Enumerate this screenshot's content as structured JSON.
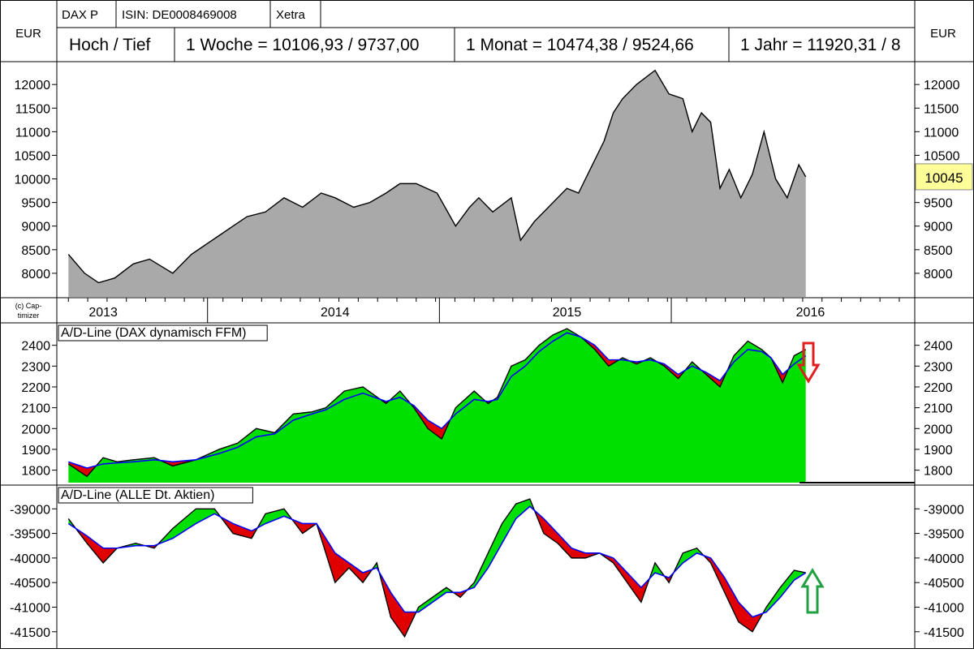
{
  "header": {
    "symbol": "DAX P",
    "isin": "ISIN: DE0008469008",
    "exchange": "Xetra",
    "hl_label": "Hoch / Tief",
    "week": "1 Woche = 10106,93 / 9737,00",
    "month": "1 Monat = 10474,38 / 9524,66",
    "year": "1 Jahr = 11920,31 / 8",
    "currency_left": "EUR",
    "currency_right": "EUR"
  },
  "copyright": [
    "(c) Cap-",
    "timizer"
  ],
  "colors": {
    "price_fill": "#a9a9a9",
    "ad_up": "#00e000",
    "ad_down": "#e00000",
    "ma_line": "#0000ff",
    "current_tag": "#ffff99",
    "arrow_down": "#e02020",
    "arrow_up": "#20a040"
  },
  "icons": {
    "panel2_signal": "down-arrow-icon",
    "panel3_signal": "up-arrow-icon"
  },
  "chart_data": [
    {
      "type": "area",
      "xlabel": "",
      "ylabel": "",
      "ylim": [
        7500,
        12450
      ],
      "yticks": [
        8000,
        8500,
        9000,
        9500,
        10000,
        10500,
        11000,
        11500,
        12000
      ],
      "current_value": "10045",
      "xticks": [
        "2013",
        "2014",
        "2015",
        "2016"
      ],
      "x": [
        2012.85,
        2012.92,
        2012.98,
        2013.05,
        2013.13,
        2013.2,
        2013.3,
        2013.38,
        2013.44,
        2013.5,
        2013.56,
        2013.62,
        2013.7,
        2013.78,
        2013.86,
        2013.94,
        2014.0,
        2014.08,
        2014.15,
        2014.22,
        2014.28,
        2014.35,
        2014.44,
        2014.52,
        2014.58,
        2014.62,
        2014.68,
        2014.76,
        2014.8,
        2014.86,
        2014.92,
        2015.0,
        2015.05,
        2015.1,
        2015.16,
        2015.2,
        2015.24,
        2015.3,
        2015.38,
        2015.44,
        2015.5,
        2015.54,
        2015.58,
        2015.62,
        2015.66,
        2015.7,
        2015.75,
        2015.8,
        2015.85,
        2015.9,
        2015.95,
        2016.0,
        2016.03
      ],
      "values": [
        8400,
        8000,
        7800,
        7900,
        8200,
        8300,
        8000,
        8400,
        8600,
        8800,
        9000,
        9200,
        9300,
        9600,
        9400,
        9700,
        9600,
        9400,
        9500,
        9700,
        9900,
        9900,
        9700,
        9000,
        9400,
        9600,
        9300,
        9600,
        8700,
        9100,
        9400,
        9800,
        9700,
        10200,
        10800,
        11400,
        11700,
        12000,
        12300,
        11800,
        11700,
        11000,
        11400,
        11200,
        9800,
        10200,
        9600,
        10100,
        11000,
        10000,
        9600,
        10300,
        10045
      ]
    },
    {
      "type": "area",
      "title": "A/D-Line (DAX dynamisch FFM)",
      "ylim": [
        1740,
        2500
      ],
      "yticks": [
        1800,
        1900,
        2000,
        2100,
        2200,
        2300,
        2400
      ],
      "x": [
        2012.85,
        2012.93,
        2013.0,
        2013.06,
        2013.13,
        2013.22,
        2013.3,
        2013.4,
        2013.5,
        2013.58,
        2013.66,
        2013.74,
        2013.82,
        2013.9,
        2013.96,
        2014.04,
        2014.12,
        2014.22,
        2014.28,
        2014.34,
        2014.4,
        2014.46,
        2014.52,
        2014.6,
        2014.66,
        2014.7,
        2014.76,
        2014.82,
        2014.88,
        2014.94,
        2015.0,
        2015.06,
        2015.12,
        2015.18,
        2015.24,
        2015.3,
        2015.36,
        2015.42,
        2015.48,
        2015.54,
        2015.6,
        2015.66,
        2015.72,
        2015.78,
        2015.84,
        2015.88,
        2015.93,
        2015.98,
        2016.03
      ],
      "values": [
        1830,
        1770,
        1860,
        1840,
        1850,
        1860,
        1820,
        1850,
        1900,
        1930,
        2000,
        1980,
        2070,
        2080,
        2100,
        2180,
        2200,
        2120,
        2180,
        2100,
        2000,
        1950,
        2100,
        2180,
        2120,
        2150,
        2300,
        2330,
        2400,
        2450,
        2480,
        2440,
        2380,
        2300,
        2340,
        2310,
        2340,
        2300,
        2240,
        2320,
        2260,
        2200,
        2350,
        2420,
        2380,
        2340,
        2220,
        2350,
        2380
      ],
      "ma": [
        1840,
        1810,
        1830,
        1835,
        1840,
        1850,
        1840,
        1850,
        1880,
        1910,
        1960,
        1975,
        2040,
        2070,
        2090,
        2140,
        2170,
        2130,
        2150,
        2110,
        2040,
        2000,
        2070,
        2140,
        2130,
        2140,
        2250,
        2300,
        2370,
        2420,
        2460,
        2440,
        2400,
        2330,
        2330,
        2320,
        2330,
        2310,
        2260,
        2300,
        2270,
        2230,
        2320,
        2380,
        2370,
        2340,
        2260,
        2310,
        2350
      ],
      "signal": "down"
    },
    {
      "type": "area",
      "title": "A/D-Line (ALLE Dt. Aktien)",
      "ylim": [
        -41850,
        -38550
      ],
      "yticks": [
        -39000,
        -39500,
        -40000,
        -40500,
        -41000,
        -41500
      ],
      "x": [
        2012.85,
        2012.93,
        2013.0,
        2013.06,
        2013.14,
        2013.22,
        2013.3,
        2013.4,
        2013.48,
        2013.56,
        2013.64,
        2013.7,
        2013.78,
        2013.86,
        2013.92,
        2014.0,
        2014.06,
        2014.12,
        2014.18,
        2014.24,
        2014.3,
        2014.36,
        2014.42,
        2014.48,
        2014.54,
        2014.6,
        2014.66,
        2014.72,
        2014.78,
        2014.84,
        2014.9,
        2014.96,
        2015.02,
        2015.08,
        2015.14,
        2015.2,
        2015.26,
        2015.32,
        2015.38,
        2015.44,
        2015.5,
        2015.56,
        2015.62,
        2015.68,
        2015.74,
        2015.8,
        2015.86,
        2015.92,
        2015.98,
        2016.03
      ],
      "values": [
        -39200,
        -39700,
        -40100,
        -39800,
        -39700,
        -39800,
        -39400,
        -39000,
        -39000,
        -39500,
        -39600,
        -39100,
        -39000,
        -39500,
        -39300,
        -40500,
        -40200,
        -40500,
        -40100,
        -41200,
        -41600,
        -41000,
        -40800,
        -40600,
        -40800,
        -40500,
        -39900,
        -39300,
        -38900,
        -38800,
        -39500,
        -39700,
        -40000,
        -40000,
        -39900,
        -40100,
        -40500,
        -40900,
        -40100,
        -40500,
        -39900,
        -39800,
        -40100,
        -40700,
        -41300,
        -41500,
        -41000,
        -40600,
        -40250,
        -40300
      ],
      "ma": [
        -39300,
        -39550,
        -39800,
        -39800,
        -39750,
        -39750,
        -39600,
        -39300,
        -39100,
        -39300,
        -39450,
        -39300,
        -39150,
        -39300,
        -39300,
        -39900,
        -40100,
        -40300,
        -40200,
        -40700,
        -41100,
        -41100,
        -40900,
        -40700,
        -40700,
        -40600,
        -40200,
        -39700,
        -39200,
        -38950,
        -39200,
        -39500,
        -39800,
        -39900,
        -39900,
        -40000,
        -40300,
        -40600,
        -40300,
        -40400,
        -40100,
        -39900,
        -40000,
        -40400,
        -40900,
        -41200,
        -41100,
        -40800,
        -40450,
        -40300
      ],
      "signal": "up"
    }
  ]
}
